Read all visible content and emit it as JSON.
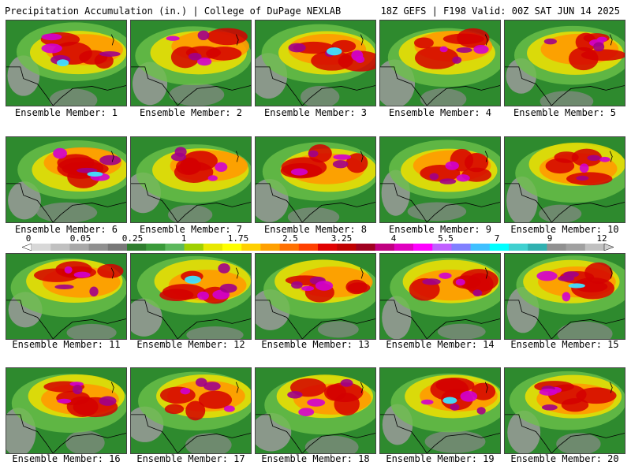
{
  "header": {
    "left": "Precipitation Accumulation (in.) | College of DuPage NEXLAB",
    "right": "18Z GEFS | F198 Valid: 00Z SAT JUN 14 2025"
  },
  "members": [
    {
      "label": "Ensemble Member: 1",
      "intensity": 0.75
    },
    {
      "label": "Ensemble Member: 2",
      "intensity": 0.6
    },
    {
      "label": "Ensemble Member: 3",
      "intensity": 0.7
    },
    {
      "label": "Ensemble Member: 4",
      "intensity": 0.6
    },
    {
      "label": "Ensemble Member: 5",
      "intensity": 0.5
    },
    {
      "label": "Ensemble Member: 6",
      "intensity": 0.75
    },
    {
      "label": "Ensemble Member: 7",
      "intensity": 0.65
    },
    {
      "label": "Ensemble Member: 8",
      "intensity": 0.55
    },
    {
      "label": "Ensemble Member: 9",
      "intensity": 0.55
    },
    {
      "label": "Ensemble Member: 10",
      "intensity": 0.55
    },
    {
      "label": "Ensemble Member: 11",
      "intensity": 0.65
    },
    {
      "label": "Ensemble Member: 12",
      "intensity": 0.7
    },
    {
      "label": "Ensemble Member: 13",
      "intensity": 0.6
    },
    {
      "label": "Ensemble Member: 14",
      "intensity": 0.6
    },
    {
      "label": "Ensemble Member: 15",
      "intensity": 0.8
    },
    {
      "label": "Ensemble Member: 16",
      "intensity": 0.55
    },
    {
      "label": "Ensemble Member: 17",
      "intensity": 0.6
    },
    {
      "label": "Ensemble Member: 18",
      "intensity": 0.55
    },
    {
      "label": "Ensemble Member: 19",
      "intensity": 0.7
    },
    {
      "label": "Ensemble Member: 20",
      "intensity": 0.6
    }
  ],
  "colorbar": {
    "labels": [
      "0",
      "0.05",
      "0.25",
      "1",
      "1.75",
      "2.5",
      "3.25",
      "4",
      "5.5",
      "7",
      "9",
      "12"
    ],
    "colors": [
      "#d8d8d8",
      "#c0c0c0",
      "#a8a8a8",
      "#909090",
      "#787878",
      "#2e7d2e",
      "#3a9a3a",
      "#5cb85c",
      "#a0d000",
      "#e8e800",
      "#ffff00",
      "#ffd000",
      "#ffa000",
      "#ff7000",
      "#ff4000",
      "#e00000",
      "#c00000",
      "#a00020",
      "#c00080",
      "#e000c0",
      "#ff00ff",
      "#c060ff",
      "#8080ff",
      "#40c0ff",
      "#00ffff",
      "#40d0d0",
      "#30b0b0",
      "#909090",
      "#a0a0a0",
      "#c0c0c0"
    ]
  }
}
